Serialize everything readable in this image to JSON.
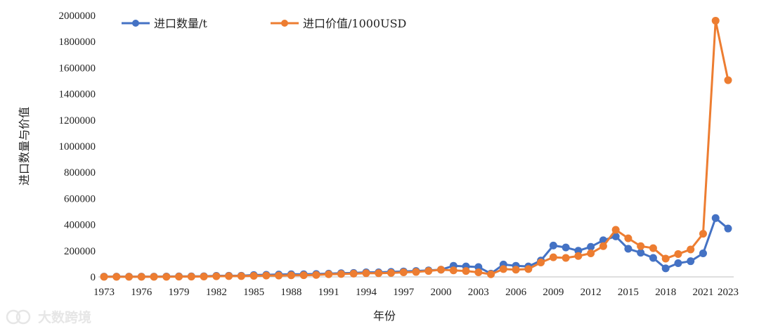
{
  "chart_data": {
    "type": "line",
    "title": "",
    "xlabel": "年份",
    "ylabel": "进口数量与价值",
    "x": [
      1973,
      1974,
      1975,
      1976,
      1977,
      1978,
      1979,
      1980,
      1981,
      1982,
      1983,
      1984,
      1985,
      1986,
      1987,
      1988,
      1989,
      1990,
      1991,
      1992,
      1993,
      1994,
      1995,
      1996,
      1997,
      1998,
      1999,
      2000,
      2001,
      2002,
      2003,
      2004,
      2005,
      2006,
      2007,
      2008,
      2009,
      2010,
      2011,
      2012,
      2013,
      2014,
      2015,
      2016,
      2017,
      2018,
      2019,
      2020,
      2021,
      2022,
      2023
    ],
    "xticks": [
      "1973",
      "1976",
      "1979",
      "1982",
      "1985",
      "1988",
      "1991",
      "1994",
      "1997",
      "2000",
      "2003",
      "2006",
      "2009",
      "2012",
      "2015",
      "2018",
      "2021",
      "2023"
    ],
    "yticks": [
      "0",
      "200000",
      "400000",
      "600000",
      "800000",
      "1000000",
      "1200000",
      "1400000",
      "1600000",
      "1800000",
      "2000000"
    ],
    "ylim": [
      0,
      2000000
    ],
    "legend_position": "top-left",
    "series": [
      {
        "name": "进口数量/t",
        "color": "#4472c4",
        "values": [
          2000,
          2000,
          2000,
          2000,
          2000,
          3000,
          4000,
          4000,
          5000,
          8000,
          9000,
          9000,
          14000,
          16000,
          18000,
          20000,
          20000,
          22000,
          25000,
          28000,
          30000,
          35000,
          35000,
          38000,
          42000,
          45000,
          50000,
          55000,
          85000,
          80000,
          75000,
          25000,
          95000,
          85000,
          80000,
          125000,
          240000,
          225000,
          200000,
          230000,
          280000,
          310000,
          215000,
          185000,
          145000,
          65000,
          105000,
          120000,
          180000,
          450000,
          370000
        ]
      },
      {
        "name": "进口价值/1000USD",
        "color": "#ed7d31",
        "values": [
          1000,
          1000,
          1000,
          1000,
          1000,
          1000,
          2000,
          2000,
          3000,
          5000,
          6000,
          6000,
          8000,
          10000,
          10000,
          12000,
          13000,
          15000,
          20000,
          22000,
          25000,
          28000,
          28000,
          30000,
          35000,
          38000,
          45000,
          55000,
          50000,
          45000,
          35000,
          20000,
          60000,
          55000,
          60000,
          110000,
          150000,
          145000,
          160000,
          180000,
          235000,
          360000,
          295000,
          235000,
          220000,
          140000,
          175000,
          210000,
          330000,
          1960000,
          1505000
        ]
      }
    ]
  },
  "watermark": {
    "text": "大数跨境"
  }
}
